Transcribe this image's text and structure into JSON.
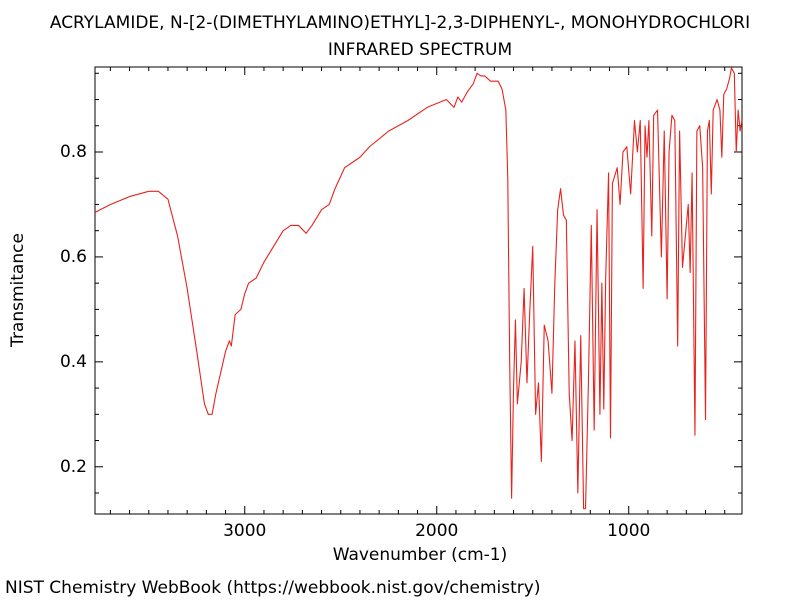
{
  "chart_data": {
    "type": "line",
    "title": "ACRYLAMIDE, N-[2-(DIMETHYLAMINO)ETHYL]-2,3-DIPHENYL-, MONOHYDROCHLORI",
    "subtitle": "INFRARED SPECTRUM",
    "x_label": "Wavenumber (cm-1)",
    "y_label": "Transmitance",
    "footer": "NIST Chemistry WebBook (https://webbook.nist.gov/chemistry)",
    "xlim": [
      3780,
      410
    ],
    "ylim": [
      0.11,
      0.962
    ],
    "xticks": [
      3000,
      2000,
      1000
    ],
    "yticks": [
      0.2,
      0.4,
      0.6,
      0.8
    ],
    "xminorticks": [
      3700,
      3600,
      3500,
      3400,
      3300,
      3200,
      3100,
      2900,
      2800,
      2700,
      2600,
      2500,
      2400,
      2300,
      2200,
      2100,
      1900,
      1800,
      1700,
      1600,
      1500,
      1400,
      1300,
      1200,
      1100,
      900,
      800,
      700,
      600,
      500
    ],
    "yminorticks": [
      0.15,
      0.25,
      0.3,
      0.35,
      0.45,
      0.5,
      0.55,
      0.65,
      0.7,
      0.75,
      0.85,
      0.9,
      0.95
    ],
    "series": [
      {
        "color": "#e8231e",
        "x": [
          3780,
          3700,
          3600,
          3500,
          3450,
          3400,
          3350,
          3300,
          3250,
          3210,
          3190,
          3170,
          3150,
          3100,
          3080,
          3070,
          3050,
          3020,
          3000,
          2980,
          2940,
          2900,
          2850,
          2800,
          2760,
          2720,
          2680,
          2650,
          2600,
          2560,
          2530,
          2480,
          2440,
          2400,
          2350,
          2250,
          2150,
          2050,
          1950,
          1910,
          1890,
          1870,
          1840,
          1810,
          1790,
          1770,
          1750,
          1720,
          1680,
          1660,
          1640,
          1630,
          1620,
          1610,
          1600,
          1590,
          1580,
          1560,
          1545,
          1530,
          1515,
          1500,
          1485,
          1470,
          1455,
          1440,
          1420,
          1400,
          1385,
          1370,
          1355,
          1340,
          1325,
          1310,
          1295,
          1280,
          1265,
          1250,
          1235,
          1225,
          1210,
          1195,
          1180,
          1165,
          1150,
          1140,
          1130,
          1120,
          1105,
          1095,
          1085,
          1060,
          1045,
          1030,
          1010,
          990,
          970,
          955,
          940,
          925,
          915,
          905,
          895,
          880,
          870,
          850,
          830,
          815,
          800,
          790,
          775,
          760,
          745,
          735,
          720,
          710,
          700,
          690,
          680,
          670,
          655,
          645,
          630,
          615,
          600,
          590,
          580,
          570,
          560,
          540,
          525,
          515,
          505,
          490,
          475,
          465,
          450,
          440,
          430,
          420,
          411
        ],
        "values": [
          0.685,
          0.7,
          0.715,
          0.725,
          0.725,
          0.71,
          0.64,
          0.54,
          0.42,
          0.32,
          0.3,
          0.3,
          0.34,
          0.42,
          0.44,
          0.43,
          0.49,
          0.5,
          0.53,
          0.55,
          0.56,
          0.59,
          0.62,
          0.65,
          0.66,
          0.66,
          0.645,
          0.66,
          0.69,
          0.7,
          0.73,
          0.77,
          0.78,
          0.79,
          0.81,
          0.84,
          0.86,
          0.885,
          0.9,
          0.885,
          0.905,
          0.895,
          0.915,
          0.93,
          0.95,
          0.945,
          0.945,
          0.935,
          0.935,
          0.92,
          0.88,
          0.75,
          0.4,
          0.14,
          0.35,
          0.48,
          0.32,
          0.4,
          0.54,
          0.36,
          0.5,
          0.62,
          0.3,
          0.36,
          0.21,
          0.47,
          0.44,
          0.34,
          0.55,
          0.69,
          0.73,
          0.68,
          0.67,
          0.34,
          0.25,
          0.44,
          0.15,
          0.45,
          0.12,
          0.12,
          0.36,
          0.66,
          0.27,
          0.69,
          0.3,
          0.55,
          0.31,
          0.56,
          0.76,
          0.255,
          0.74,
          0.77,
          0.7,
          0.8,
          0.81,
          0.72,
          0.86,
          0.8,
          0.86,
          0.54,
          0.85,
          0.79,
          0.86,
          0.64,
          0.87,
          0.88,
          0.6,
          0.84,
          0.52,
          0.8,
          0.87,
          0.86,
          0.43,
          0.84,
          0.58,
          0.62,
          0.66,
          0.7,
          0.57,
          0.76,
          0.26,
          0.84,
          0.85,
          0.77,
          0.29,
          0.84,
          0.86,
          0.72,
          0.88,
          0.9,
          0.88,
          0.79,
          0.91,
          0.92,
          0.94,
          0.96,
          0.95,
          0.8,
          0.88,
          0.84,
          0.86
        ]
      }
    ]
  }
}
